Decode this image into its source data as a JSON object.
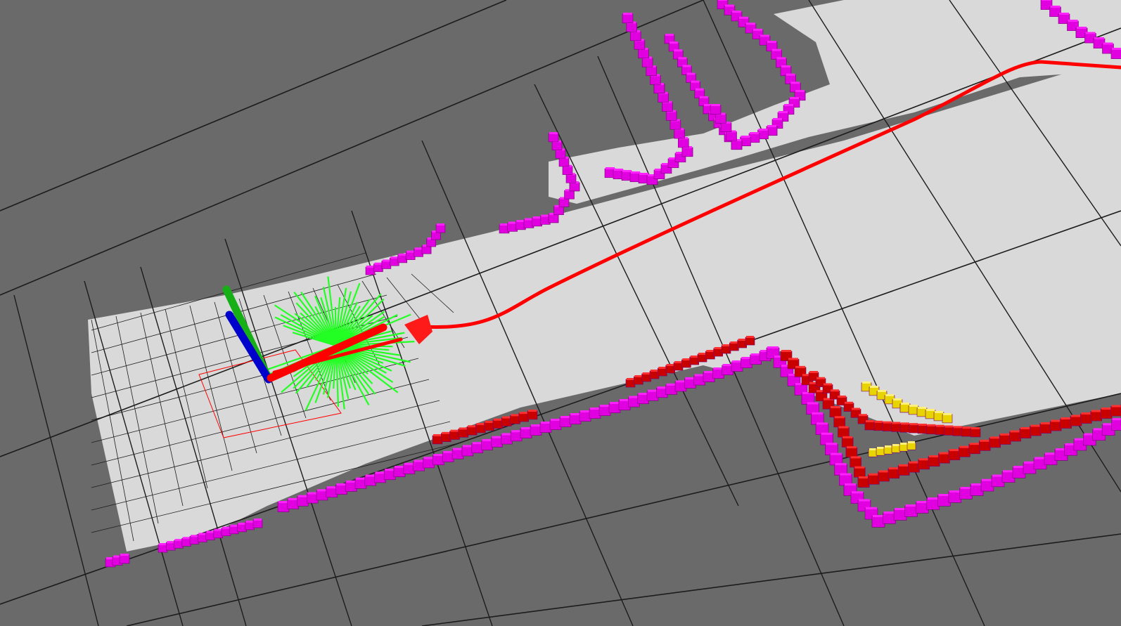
{
  "viewer": {
    "colors": {
      "background": "#6a6a6a",
      "grid_line": "#1c1c1c",
      "free_space": "#d9d9d9",
      "occupied_voxel": "#e000e0",
      "occupied_voxel_top": "#ff22ff",
      "inflation_voxel": "#c80000",
      "inflation_voxel_top": "#ff3030",
      "lethal_voxel": "#e8d400",
      "planned_path": "#ff0000",
      "laser_rays": "#22ff22",
      "axis_x": "#ff0000",
      "axis_y": "#16b016",
      "axis_z": "#0000cc",
      "footprint": "#ff0000",
      "goal_marker": "#ff1a1a"
    },
    "layers": [
      {
        "name": "grid-lines",
        "icon": "grid-icon"
      },
      {
        "name": "free-space-octree",
        "icon": "octree-icon"
      },
      {
        "name": "occupied-voxels",
        "icon": "voxel-icon"
      },
      {
        "name": "inflated-costmap",
        "icon": "costmap-icon"
      },
      {
        "name": "global-path",
        "icon": "path-icon"
      },
      {
        "name": "robot-pose-axes",
        "icon": "axes-icon"
      },
      {
        "name": "laser-scan",
        "icon": "laser-icon"
      },
      {
        "name": "robot-footprint",
        "icon": "footprint-icon"
      },
      {
        "name": "goal-marker",
        "icon": "arrow-icon"
      }
    ]
  }
}
